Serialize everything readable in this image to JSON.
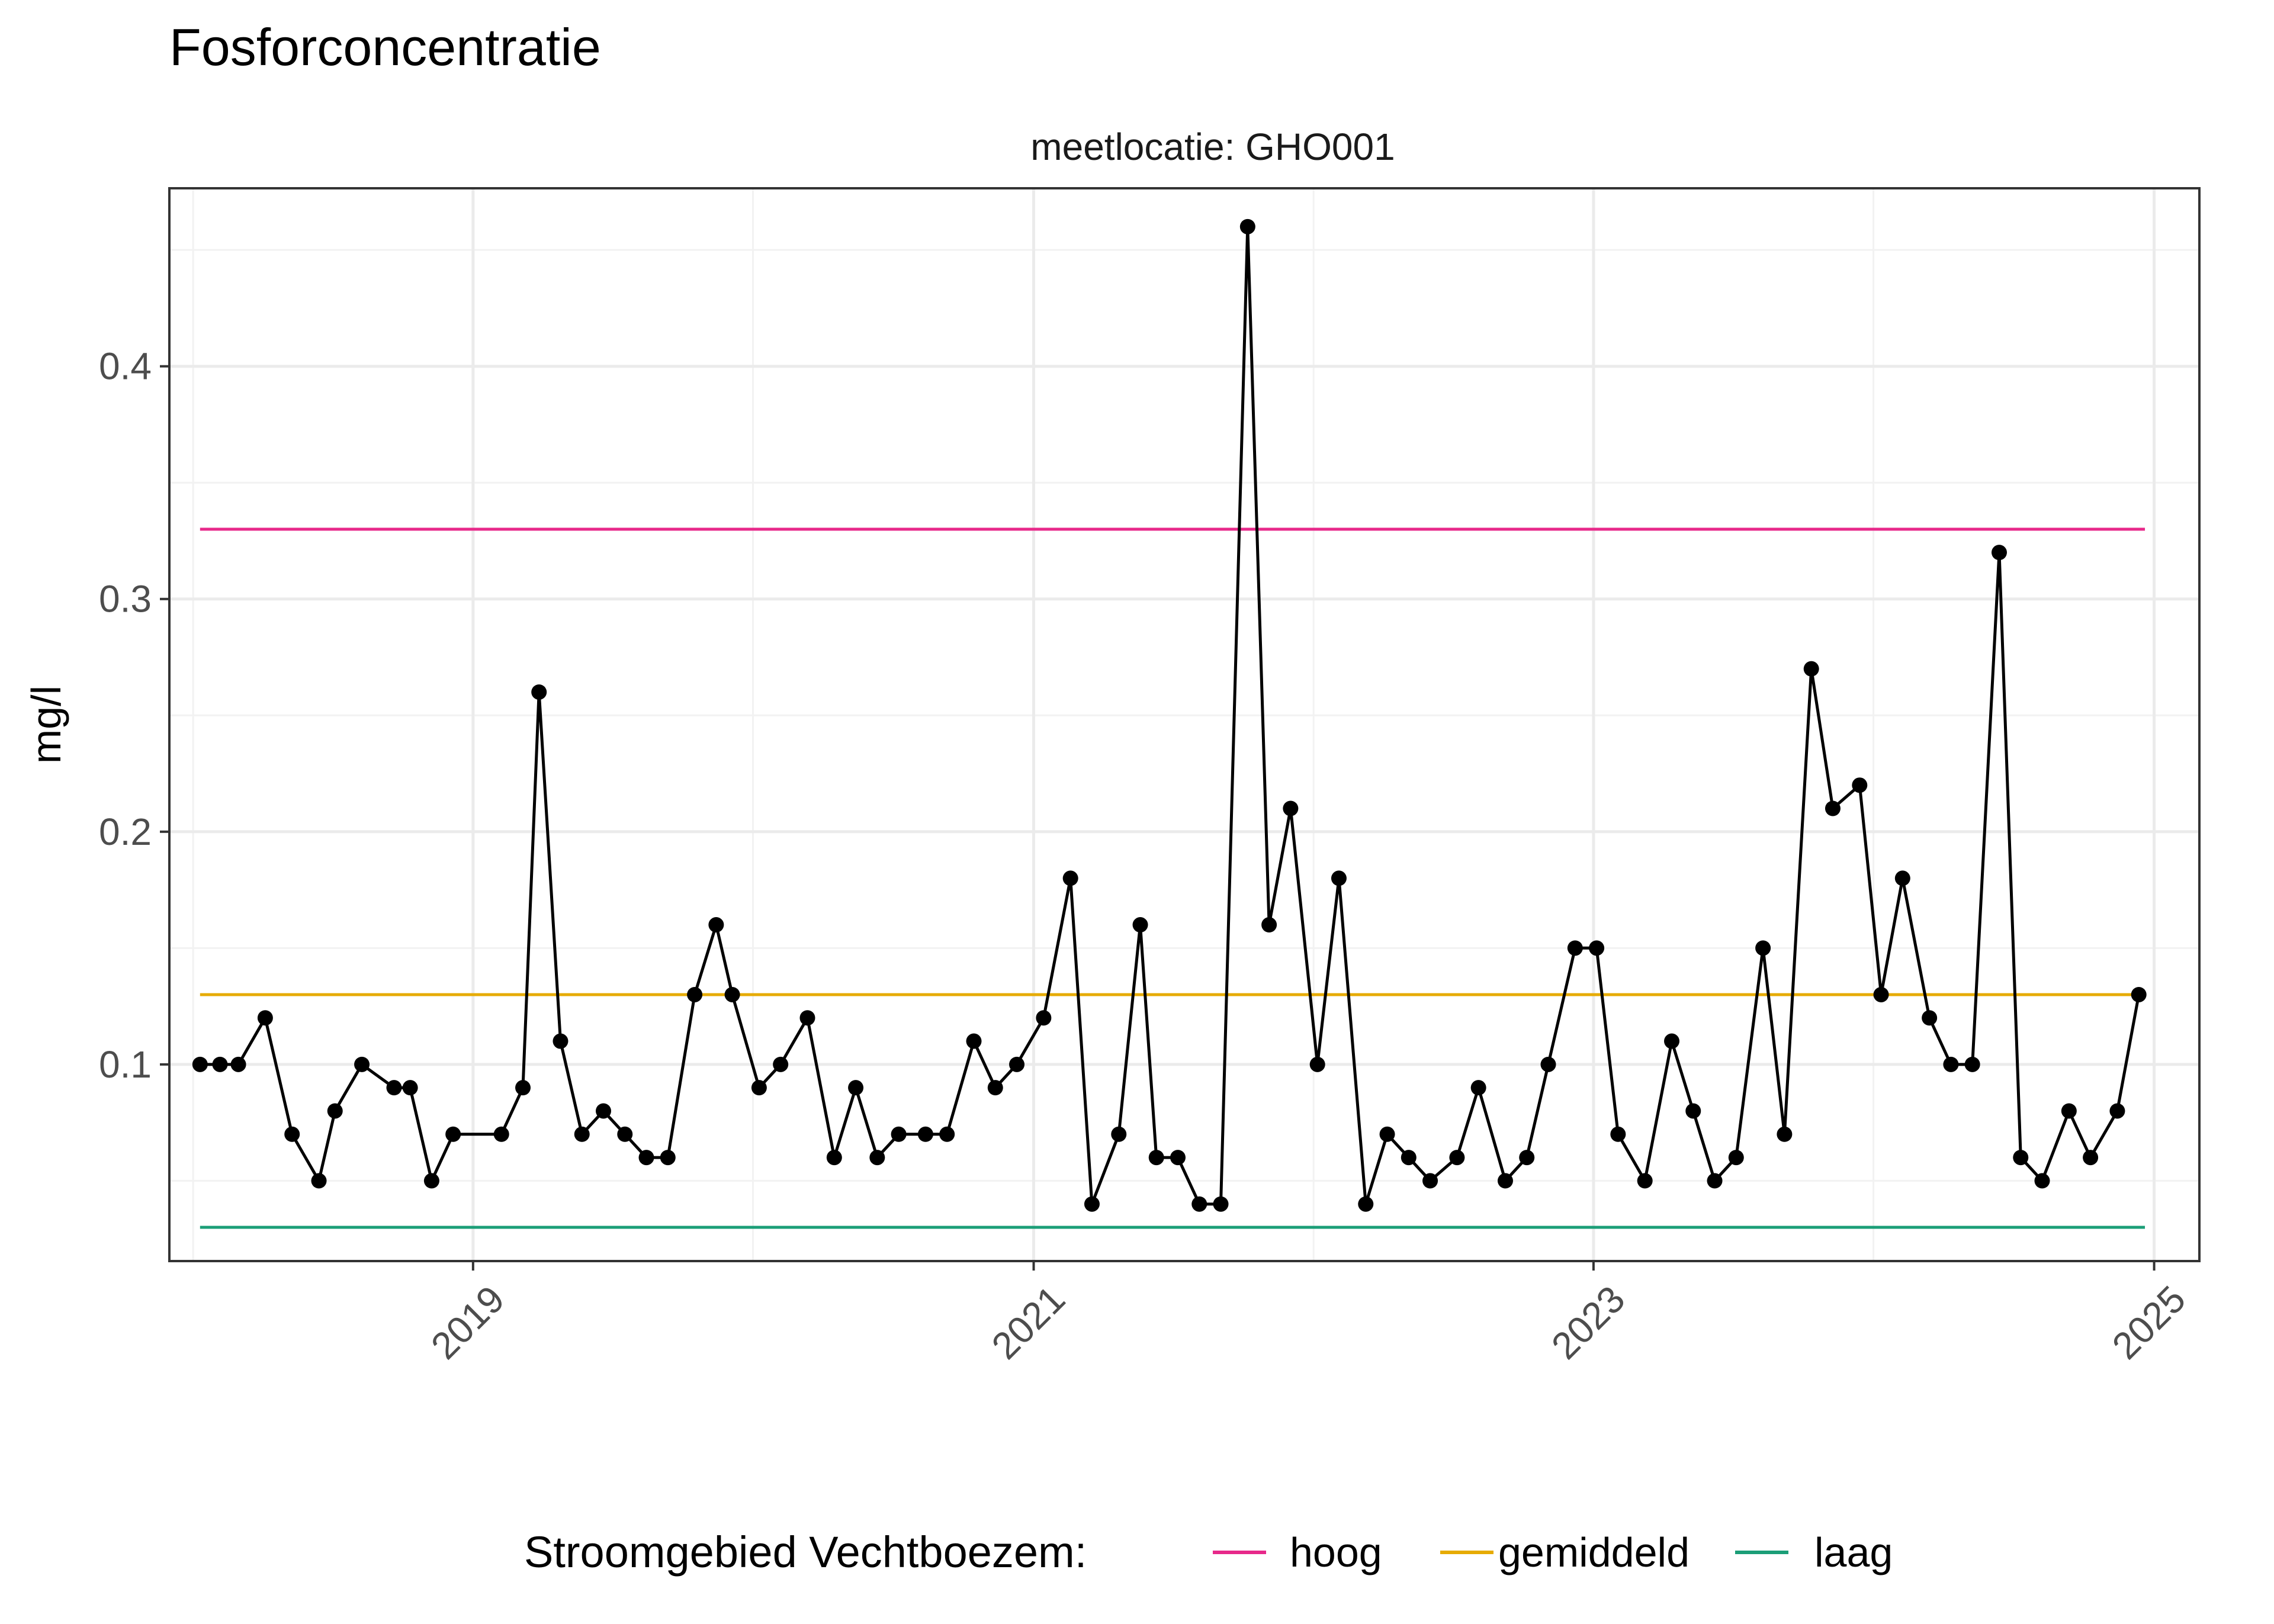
{
  "chart_data": {
    "type": "line",
    "title": "Fosforconcentratie",
    "subtitle": "meetlocatie: GHO001",
    "xlabel": "",
    "ylabel": "mg/l",
    "x_ticks": [
      "2019",
      "2021",
      "2023",
      "2025"
    ],
    "y_ticks": [
      0.1,
      0.2,
      0.3,
      0.4
    ],
    "xlim": [
      "2017-12-01",
      "2025-03-01"
    ],
    "ylim": [
      0.0155,
      0.4765
    ],
    "grid": true,
    "legend": {
      "title": "Stroomgebied Vechtboezem:",
      "position": "bottom",
      "items": [
        {
          "label": "hoog",
          "color": "#e7298a"
        },
        {
          "label": "gemiddeld",
          "color": "#e6ab02"
        },
        {
          "label": "laag",
          "color": "#1b9e77"
        }
      ]
    },
    "reference_lines": [
      {
        "name": "hoog",
        "y": 0.33,
        "x_start": "2018-01-10",
        "x_end": "2024-12-20",
        "color": "#e7298a"
      },
      {
        "name": "gemiddeld",
        "y": 0.13,
        "x_start": "2018-01-10",
        "x_end": "2024-12-20",
        "color": "#e6ab02"
      },
      {
        "name": "laag",
        "y": 0.03,
        "x_start": "2018-01-10",
        "x_end": "2024-12-20",
        "color": "#1b9e77"
      }
    ],
    "series": [
      {
        "color": "#000000",
        "x": [
          "2018-01-10",
          "2018-02-05",
          "2018-03-01",
          "2018-04-05",
          "2018-05-10",
          "2018-06-14",
          "2018-07-05",
          "2018-08-09",
          "2018-09-20",
          "2018-10-11",
          "2018-11-08",
          "2018-12-06",
          "2019-02-07",
          "2019-03-07",
          "2019-03-28",
          "2019-04-25",
          "2019-05-23",
          "2019-06-20",
          "2019-07-18",
          "2019-08-15",
          "2019-09-12",
          "2019-10-17",
          "2019-11-14",
          "2019-12-05",
          "2020-01-09",
          "2020-02-06",
          "2020-03-12",
          "2020-04-16",
          "2020-05-14",
          "2020-06-11",
          "2020-07-09",
          "2020-08-13",
          "2020-09-10",
          "2020-10-15",
          "2020-11-12",
          "2020-12-10",
          "2021-01-14",
          "2021-02-18",
          "2021-03-18",
          "2021-04-22",
          "2021-05-20",
          "2021-06-10",
          "2021-07-08",
          "2021-08-05",
          "2021-09-02",
          "2021-10-07",
          "2021-11-04",
          "2021-12-02",
          "2022-01-06",
          "2022-02-03",
          "2022-03-10",
          "2022-04-07",
          "2022-05-05",
          "2022-06-02",
          "2022-07-07",
          "2022-08-04",
          "2022-09-08",
          "2022-10-06",
          "2022-11-03",
          "2022-12-08",
          "2023-01-05",
          "2023-02-02",
          "2023-03-09",
          "2023-04-13",
          "2023-05-11",
          "2023-06-08",
          "2023-07-06",
          "2023-08-10",
          "2023-09-07",
          "2023-10-12",
          "2023-11-09",
          "2023-12-14",
          "2024-01-11",
          "2024-02-08",
          "2024-03-14",
          "2024-04-11",
          "2024-05-09",
          "2024-06-13",
          "2024-07-11",
          "2024-08-08",
          "2024-09-12",
          "2024-10-10",
          "2024-11-14",
          "2024-12-12"
        ],
        "y": [
          0.1,
          0.1,
          0.1,
          0.12,
          0.07,
          0.05,
          0.08,
          0.1,
          0.09,
          0.09,
          0.05,
          0.07,
          0.07,
          0.09,
          0.26,
          0.11,
          0.07,
          0.08,
          0.07,
          0.06,
          0.06,
          0.13,
          0.16,
          0.13,
          0.09,
          0.1,
          0.12,
          0.06,
          0.09,
          0.06,
          0.07,
          0.07,
          0.07,
          0.11,
          0.09,
          0.1,
          0.12,
          0.18,
          0.04,
          0.07,
          0.16,
          0.06,
          0.06,
          0.04,
          0.04,
          0.46,
          0.16,
          0.21,
          0.1,
          0.18,
          0.04,
          0.07,
          0.06,
          0.05,
          0.06,
          0.09,
          0.05,
          0.06,
          0.1,
          0.15,
          0.15,
          0.07,
          0.05,
          0.11,
          0.08,
          0.05,
          0.06,
          0.15,
          0.07,
          0.27,
          0.21,
          0.22,
          0.13,
          0.18,
          0.12,
          0.1,
          0.1,
          0.32,
          0.06,
          0.05,
          0.08,
          0.06,
          0.08,
          0.13
        ]
      }
    ]
  }
}
